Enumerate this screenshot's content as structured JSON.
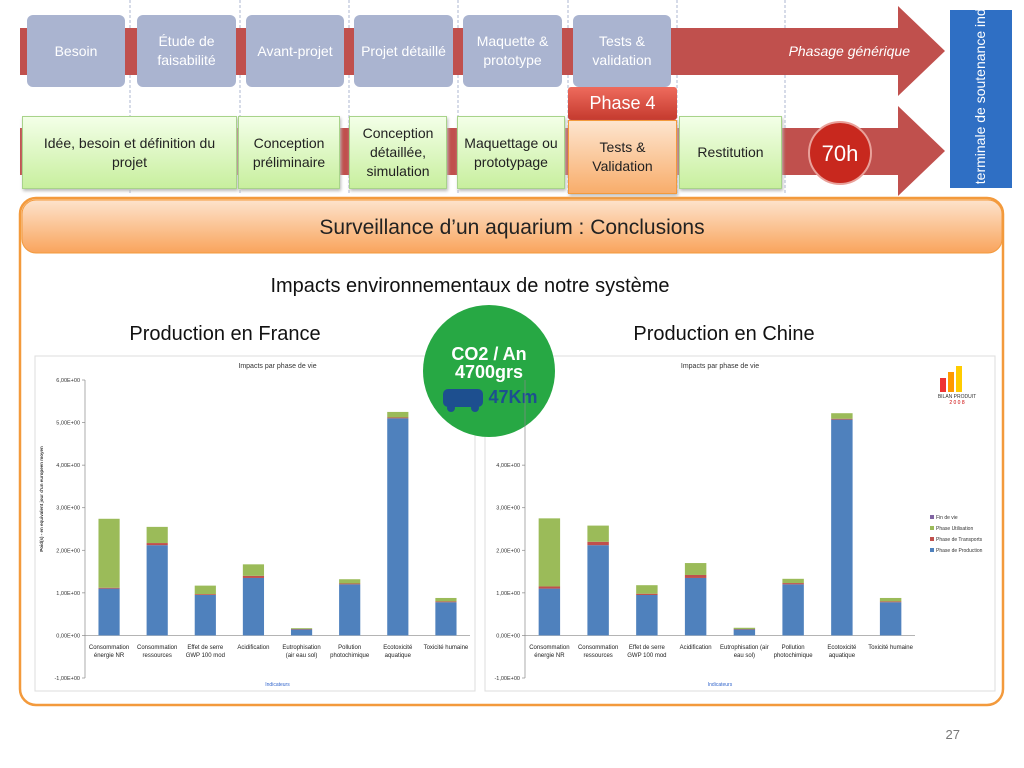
{
  "header": {
    "phases_top": [
      "Besoin",
      "Étude de faisabilité",
      "Avant-projet",
      "Projet détaillé",
      "Maquette & prototype",
      "Tests & validation"
    ],
    "generic": "Phasage générique",
    "phase_label": "Phase 4",
    "phases_bottom": [
      "Idée, besoin et définition du projet",
      "Conception préliminaire",
      "Conception détaillée, simulation",
      "Maquettage ou prototypage",
      "Tests & Validation",
      "Restitution"
    ],
    "hours": "70h",
    "side": "Épreuve terminale de soutenance  individuelle"
  },
  "slide": {
    "title": "Surveillance d’un aquarium : Conclusions",
    "subtitle": "Impacts environnementaux de notre système",
    "left_heading": "Production en France",
    "right_heading": "Production en Chine",
    "badge": [
      "CO2 / An",
      "4700grs",
      "47Km"
    ],
    "logo": [
      "BILAN PRODUIT",
      "2 0 0 8"
    ],
    "page_number": "27"
  },
  "chart_data": [
    {
      "type": "bar",
      "stacked": true,
      "title": "Impacts par phase de vie",
      "x_label": "Indicateurs",
      "y_label": "Poid(s) - en equivalent jour d'un europeen moyen",
      "categories": [
        "Consommation énergie NR",
        "Consommation ressources",
        "Effet de serre GWP 100 mod",
        "Acidification",
        "Eutrophisation (air eau sol)",
        "Pollution photochimique",
        "Ecotoxicité aquatique",
        "Toxicité humaine"
      ],
      "series": [
        {
          "name": "Phase de Production",
          "color": "#4f81bd",
          "values": [
            1.1,
            2.12,
            0.95,
            1.35,
            0.14,
            1.2,
            5.1,
            0.78
          ]
        },
        {
          "name": "Phase de Transports",
          "color": "#c0504d",
          "values": [
            0.02,
            0.05,
            0.02,
            0.05,
            0.01,
            0.02,
            0.02,
            0.02
          ]
        },
        {
          "name": "Phase Utilisation",
          "color": "#9bbb59",
          "values": [
            1.62,
            0.38,
            0.2,
            0.27,
            0.02,
            0.1,
            0.13,
            0.08
          ]
        },
        {
          "name": "Fin de vie",
          "color": "#8064a2",
          "values": [
            0,
            0,
            0,
            0,
            0,
            0,
            0,
            0
          ]
        }
      ],
      "ylim": [
        -1,
        6
      ],
      "legend": false,
      "grid": false,
      "yticks": [
        {
          "value": -1,
          "label": "-1,00E+00"
        },
        {
          "value": 0,
          "label": "0,00E+00"
        },
        {
          "value": 1,
          "label": "1,00E+00"
        },
        {
          "value": 2,
          "label": "2,00E+00"
        },
        {
          "value": 3,
          "label": "3,00E+00"
        },
        {
          "value": 4,
          "label": "4,00E+00"
        },
        {
          "value": 5,
          "label": "5,00E+00"
        },
        {
          "value": 6,
          "label": "6,00E+00"
        }
      ]
    },
    {
      "type": "bar",
      "stacked": true,
      "title": "Impacts par phase de vie",
      "x_label": "Indicateurs",
      "categories": [
        "Consommation énergie NR",
        "Consommation ressources",
        "Effet de serre GWP 100 mod",
        "Acidification",
        "Eutrophisation (air eau sol)",
        "Pollution photochimique",
        "Ecotoxicité aquatique",
        "Toxicité humaine"
      ],
      "series": [
        {
          "name": "Phase de Production",
          "color": "#4f81bd",
          "values": [
            1.1,
            2.12,
            0.95,
            1.35,
            0.14,
            1.2,
            5.07,
            0.78
          ]
        },
        {
          "name": "Phase de Transports",
          "color": "#c0504d",
          "values": [
            0.05,
            0.08,
            0.03,
            0.07,
            0.01,
            0.03,
            0.02,
            0.02
          ]
        },
        {
          "name": "Phase Utilisation",
          "color": "#9bbb59",
          "values": [
            1.6,
            0.38,
            0.2,
            0.28,
            0.03,
            0.1,
            0.13,
            0.08
          ]
        },
        {
          "name": "Fin de vie",
          "color": "#8064a2",
          "values": [
            0,
            0,
            0,
            0,
            0,
            0,
            0,
            0
          ]
        }
      ],
      "ylim": [
        -1,
        6
      ],
      "legend": true,
      "legend_position": "right",
      "grid": false,
      "yticks": [
        {
          "value": -1,
          "label": "-1,00E+00"
        },
        {
          "value": 0,
          "label": "0,00E+00"
        },
        {
          "value": 1,
          "label": "1,00E+00"
        },
        {
          "value": 2,
          "label": "2,00E+00"
        },
        {
          "value": 3,
          "label": "3,00E+00"
        },
        {
          "value": 4,
          "label": "4,00E+00"
        }
      ]
    }
  ]
}
